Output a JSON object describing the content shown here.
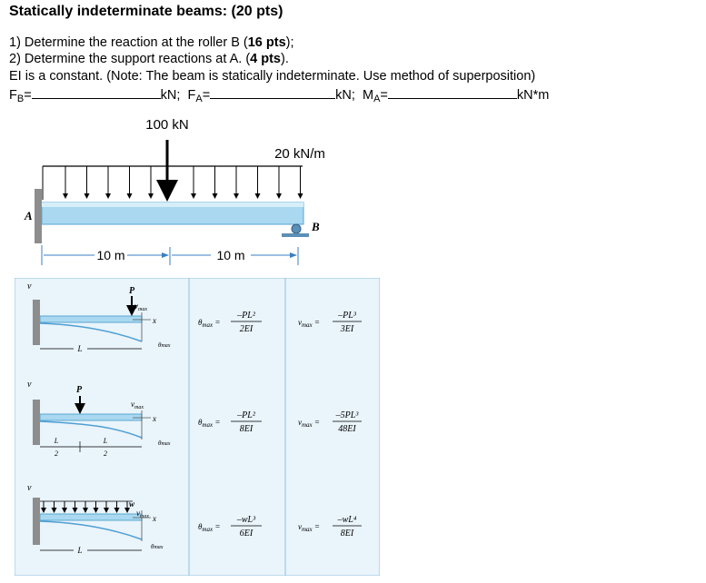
{
  "heading": "Statically indeterminate beams: (20 pts)",
  "questions": {
    "q1_pre": "1) Determine the reaction at the roller B (",
    "q1_pts": "16 pts",
    "q1_post": ");",
    "q2_pre": "2) Determine the support reactions at A. (",
    "q2_pts": "4 pts",
    "q2_post": ").",
    "note": "EI is a constant. (Note: The beam is statically indeterminate. Use method of superposition)"
  },
  "answers": {
    "fb_label": "F",
    "fb_sub": "B",
    "fb_unit": "kN;",
    "fa_label": "F",
    "fa_sub": "A",
    "fa_unit": "kN;",
    "ma_label": "M",
    "ma_sub": "A",
    "ma_unit": "kN*m"
  },
  "beam": {
    "point_load": "100 kN",
    "dist_load": "20 kN/m",
    "support_a": "A",
    "support_b": "B",
    "span1": "10 m",
    "span2": "10 m"
  },
  "table": {
    "rows": [
      {
        "load": "P",
        "deflection_label": "v",
        "vmax": "v",
        "vmax_sub": "max",
        "theta_sub": "max",
        "x": "x",
        "length": "L",
        "theta_num": "–PL²",
        "theta_den": "2EI",
        "v_num": "–PL³",
        "v_den": "3EI"
      },
      {
        "load": "P",
        "deflection_label": "v",
        "vmax": "v",
        "vmax_sub": "max",
        "theta_sub": "max",
        "x": "x",
        "half_num": "L",
        "half_den": "2",
        "theta_num": "–PL²",
        "theta_den": "8EI",
        "v_num": "–5PL³",
        "v_den": "48EI"
      },
      {
        "load": "w",
        "deflection_label": "v",
        "vmax": "v",
        "vmax_sub": "max",
        "theta_sub": "max",
        "x": "x",
        "length": "L",
        "theta_num": "–wL³",
        "theta_den": "6EI",
        "v_num": "–wL⁴",
        "v_den": "8EI"
      }
    ],
    "theta_symbol": "θ",
    "v_symbol": "v"
  },
  "colors": {
    "beam_fill": "#a9d8f0",
    "beam_edge": "#5aa7cf",
    "wall": "#7a7a7a",
    "table_bg": "#e9f4fb",
    "deflected": "#4f9fd3"
  }
}
